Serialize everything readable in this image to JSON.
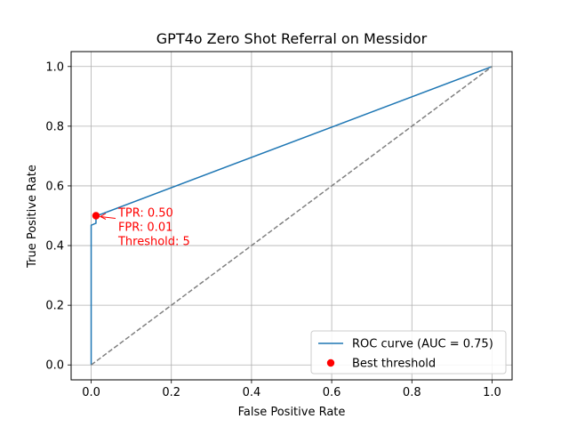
{
  "chart_data": {
    "type": "line",
    "title": "GPT4o Zero Shot Referral on Messidor",
    "xlabel": "False Positive Rate",
    "ylabel": "True Positive Rate",
    "xlim": [
      -0.05,
      1.05
    ],
    "ylim": [
      -0.05,
      1.05
    ],
    "xticks": [
      0.0,
      0.2,
      0.4,
      0.6,
      0.8,
      1.0
    ],
    "yticks": [
      0.0,
      0.2,
      0.4,
      0.6,
      0.8,
      1.0
    ],
    "xtick_labels": [
      "0.0",
      "0.2",
      "0.4",
      "0.6",
      "0.8",
      "1.0"
    ],
    "ytick_labels": [
      "0.0",
      "0.2",
      "0.4",
      "0.6",
      "0.8",
      "1.0"
    ],
    "grid": true,
    "legend_position": "bottom-right",
    "series": [
      {
        "name": "ROC curve (AUC = 0.75)",
        "color": "#1f77b4",
        "x": [
          0.0,
          0.0,
          0.0,
          0.012,
          0.012,
          0.015,
          1.0
        ],
        "y": [
          0.0,
          0.465,
          0.468,
          0.475,
          0.5,
          0.5,
          1.0
        ]
      },
      {
        "name": "",
        "color": "#808080",
        "dashed": true,
        "x": [
          0.0,
          1.0
        ],
        "y": [
          0.0,
          1.0
        ]
      }
    ],
    "best_threshold": {
      "name": "Best threshold",
      "color": "#ff0000",
      "x": 0.012,
      "y": 0.5
    },
    "annotation_lines": [
      "TPR: 0.50",
      "FPR: 0.01",
      "Threshold: 5"
    ]
  }
}
